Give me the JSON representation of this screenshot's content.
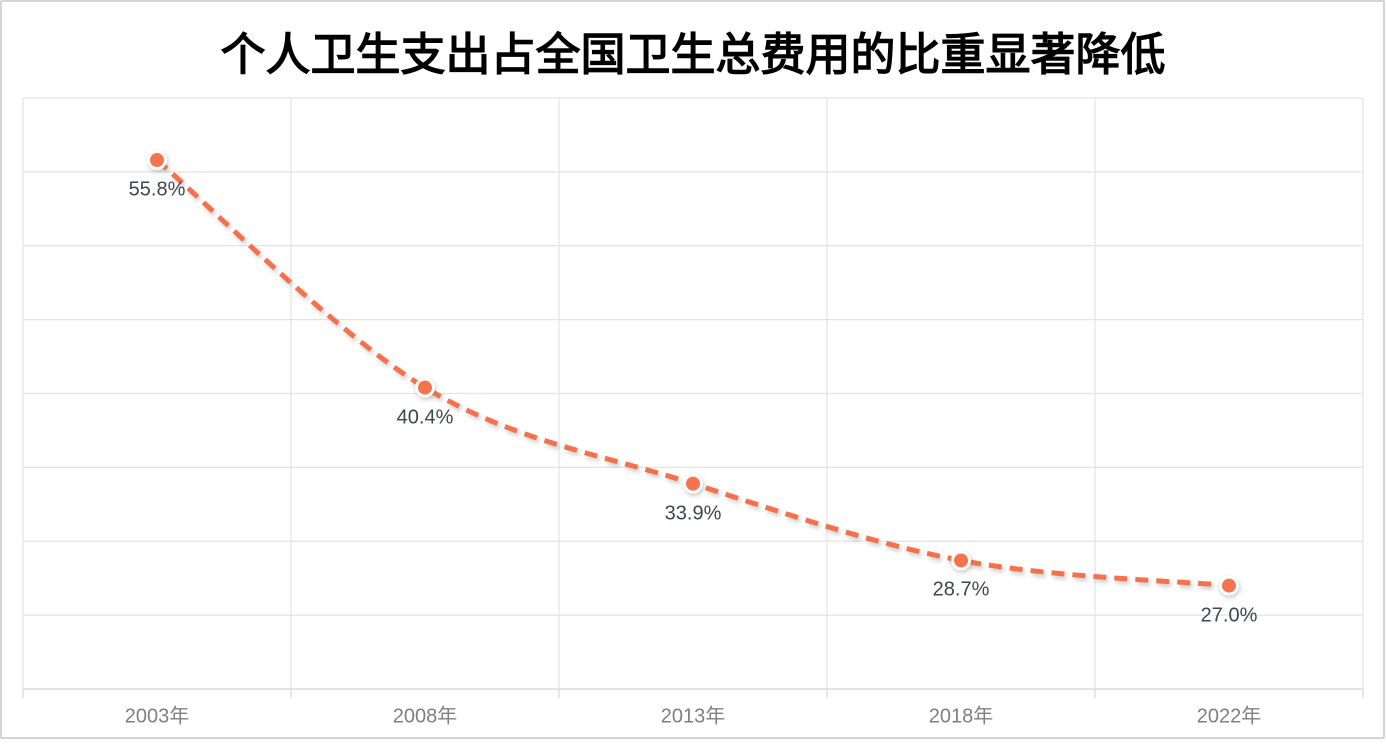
{
  "card": {
    "border_color": "#d5d5d5",
    "background": "#ffffff"
  },
  "chart_data": {
    "type": "line",
    "title": "个人卫生支出占全国卫生总费用的比重显著降低",
    "categories": [
      "2003年",
      "2008年",
      "2013年",
      "2018年",
      "2022年"
    ],
    "values": [
      55.8,
      40.4,
      33.9,
      28.7,
      27.0
    ],
    "point_labels": [
      "55.8%",
      "40.4%",
      "33.9%",
      "28.7%",
      "27.0%"
    ],
    "xlabel": "",
    "ylabel": "",
    "ylim": [
      20,
      60
    ],
    "y_grid_step": 5,
    "grid": true,
    "legend": "none",
    "y_tick_labels_visible": false,
    "line_style": "dashed",
    "smooth": true,
    "colors": {
      "line": "#f4714b",
      "marker_fill": "#f5744e",
      "marker_ring": "#ffffff",
      "gridline": "#e3e3e3",
      "axis": "#d9d9d9",
      "point_label": "#3f4450",
      "tick_label": "#7f7f7f",
      "title": "#000000"
    }
  }
}
